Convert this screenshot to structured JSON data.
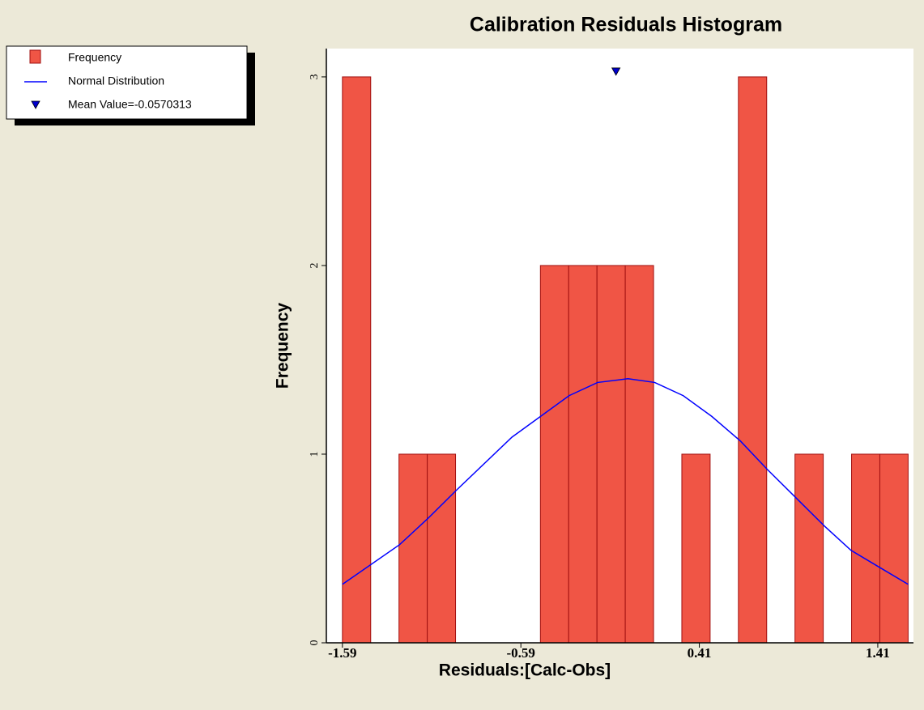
{
  "chart_data": {
    "type": "histogram",
    "title": "Calibration Residuals Histogram",
    "xlabel": "Residuals:[Calc-Obs]",
    "ylabel": "Frequency",
    "bins": [
      -1.59,
      -1.4315,
      -1.273,
      -1.1145,
      -0.956,
      -0.7975,
      -0.639,
      -0.4805,
      -0.322,
      -0.1635,
      -0.005,
      0.1535,
      0.312,
      0.4705,
      0.629,
      0.7875,
      0.946,
      1.1045,
      1.263,
      1.4215,
      1.58
    ],
    "series": [
      {
        "name": "Frequency",
        "color": "#f05545",
        "values": [
          3,
          0,
          1,
          1,
          0,
          0,
          0,
          2,
          2,
          2,
          2,
          0,
          1,
          0,
          3,
          0,
          1,
          0,
          1,
          1
        ]
      },
      {
        "name": "Normal Distribution",
        "color": "#0000ff",
        "x": [
          -1.59,
          -1.27,
          -1.11,
          -0.95,
          -0.64,
          -0.48,
          -0.32,
          -0.16,
          0.01,
          0.16,
          0.32,
          0.48,
          0.64,
          0.79,
          0.95,
          1.11,
          1.26,
          1.42,
          1.58
        ],
        "values": [
          0.31,
          0.52,
          0.66,
          0.81,
          1.09,
          1.2,
          1.31,
          1.38,
          1.4,
          1.38,
          1.31,
          1.2,
          1.07,
          0.92,
          0.77,
          0.62,
          0.49,
          0.4,
          0.31
        ]
      },
      {
        "name": "Mean Value=-0.0570313",
        "color": "#0000cc",
        "x": [
          -0.0570313
        ],
        "values": [
          3.03
        ]
      }
    ],
    "xlim": [
      -1.68,
      1.61
    ],
    "ylim": [
      0,
      3.15
    ],
    "xticks": [
      -1.59,
      -0.59,
      0.41,
      1.41
    ],
    "yticks": [
      0,
      1,
      2,
      3
    ]
  }
}
